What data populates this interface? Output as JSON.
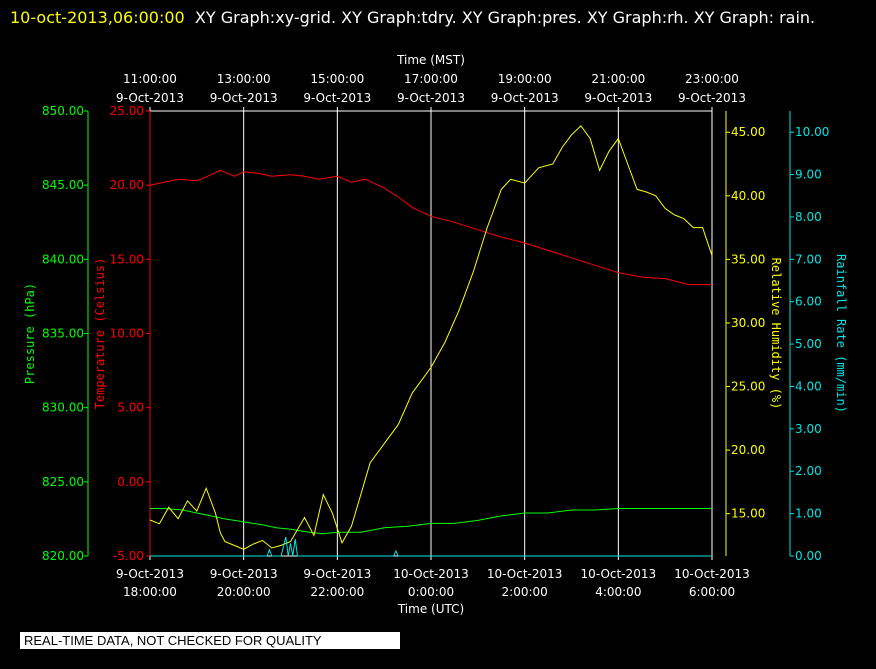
{
  "title": {
    "datetime": "10-oct-2013,06:00:00",
    "text": "XY Graph:xy-grid.  XY Graph:tdry.  XY Graph:pres.  XY Graph:rh.  XY Graph: rain."
  },
  "disclaimer": "REAL-TIME DATA, NOT CHECKED FOR QUALITY",
  "colors": {
    "temperature": "#ff0000",
    "pressure": "#00ff00",
    "humidity": "#ffff00",
    "rain": "#00e5e5",
    "grid": "#ffffff"
  },
  "chart_data": {
    "type": "line",
    "top_axis": {
      "title": "Time (MST)",
      "ticks": [
        [
          "11:00:00",
          "9-Oct-2013"
        ],
        [
          "13:00:00",
          "9-Oct-2013"
        ],
        [
          "15:00:00",
          "9-Oct-2013"
        ],
        [
          "17:00:00",
          "9-Oct-2013"
        ],
        [
          "19:00:00",
          "9-Oct-2013"
        ],
        [
          "21:00:00",
          "9-Oct-2013"
        ],
        [
          "23:00:00",
          "9-Oct-2013"
        ]
      ]
    },
    "bottom_axis": {
      "title": "Time (UTC)",
      "ticks": [
        [
          "9-Oct-2013",
          "18:00:00"
        ],
        [
          "9-Oct-2013",
          "20:00:00"
        ],
        [
          "9-Oct-2013",
          "22:00:00"
        ],
        [
          "10-Oct-2013",
          "0:00:00"
        ],
        [
          "10-Oct-2013",
          "2:00:00"
        ],
        [
          "10-Oct-2013",
          "4:00:00"
        ],
        [
          "10-Oct-2013",
          "6:00:00"
        ]
      ]
    },
    "x_range_hours": [
      0,
      12
    ],
    "axes": {
      "pressure": {
        "label": "Pressure (hPa)",
        "range": [
          820,
          850
        ],
        "ticks": [
          "820.00",
          "825.00",
          "830.00",
          "835.00",
          "840.00",
          "845.00",
          "850.00"
        ]
      },
      "temperature": {
        "label": "Temperature (Celsius)",
        "range": [
          -5,
          25
        ],
        "ticks": [
          "-5.00",
          "0.00",
          "5.00",
          "10.00",
          "15.00",
          "20.00",
          "25.00"
        ]
      },
      "humidity": {
        "label": "Relative Humidity (%)",
        "range": [
          11.67,
          46.67
        ],
        "ticks": [
          "15.00",
          "20.00",
          "25.00",
          "30.00",
          "35.00",
          "40.00",
          "45.00"
        ]
      },
      "rain": {
        "label": "Rainfall Rate (mm/min)",
        "range": [
          0,
          10.5
        ],
        "ticks": [
          "0.00",
          "1.00",
          "2.00",
          "3.00",
          "4.00",
          "5.00",
          "6.00",
          "7.00",
          "8.00",
          "9.00",
          "10.00"
        ]
      }
    },
    "series": [
      {
        "name": "tdry",
        "axis": "temperature",
        "x": [
          0,
          0.3,
          0.6,
          1,
          1.3,
          1.5,
          1.8,
          2,
          2.3,
          2.6,
          3,
          3.3,
          3.6,
          4,
          4.3,
          4.6,
          5,
          5.3,
          5.6,
          6,
          6.5,
          7,
          7.5,
          8,
          8.5,
          9,
          9.5,
          10,
          10.5,
          11,
          11.5,
          12
        ],
        "y": [
          20.0,
          20.2,
          20.4,
          20.3,
          20.7,
          21.0,
          20.6,
          20.9,
          20.8,
          20.6,
          20.7,
          20.6,
          20.4,
          20.6,
          20.2,
          20.4,
          19.8,
          19.2,
          18.5,
          17.9,
          17.5,
          17.0,
          16.5,
          16.1,
          15.6,
          15.1,
          14.6,
          14.1,
          13.8,
          13.7,
          13.3,
          13.3
        ]
      },
      {
        "name": "pres",
        "axis": "pressure",
        "x": [
          0,
          0.3,
          0.7,
          1,
          1.3,
          1.6,
          2,
          2.4,
          2.7,
          3,
          3.4,
          3.7,
          4,
          4.5,
          5,
          5.5,
          6,
          6.5,
          7,
          7.5,
          8,
          8.5,
          9,
          9.5,
          10,
          10.5,
          11,
          11.5,
          12
        ],
        "y": [
          823.2,
          823.2,
          823.1,
          822.9,
          822.7,
          822.5,
          822.3,
          822.1,
          821.9,
          821.8,
          821.6,
          821.5,
          821.6,
          821.6,
          821.9,
          822.0,
          822.2,
          822.2,
          822.4,
          822.7,
          822.9,
          822.9,
          823.1,
          823.1,
          823.2,
          823.2,
          823.2,
          823.2,
          823.2
        ]
      },
      {
        "name": "rh",
        "axis": "humidity",
        "x": [
          0,
          0.2,
          0.4,
          0.6,
          0.8,
          1,
          1.2,
          1.4,
          1.5,
          1.6,
          1.8,
          2,
          2.2,
          2.4,
          2.6,
          2.8,
          3,
          3.3,
          3.5,
          3.7,
          3.9,
          4.1,
          4.3,
          4.5,
          4.7,
          5,
          5.3,
          5.6,
          6,
          6.3,
          6.6,
          6.9,
          7.2,
          7.5,
          7.7,
          8,
          8.3,
          8.6,
          8.8,
          9,
          9.2,
          9.4,
          9.6,
          9.8,
          10,
          10.2,
          10.4,
          10.6,
          10.8,
          11,
          11.2,
          11.4,
          11.6,
          11.8,
          12
        ],
        "y": [
          14.5,
          14.2,
          15.5,
          14.6,
          16.0,
          15.2,
          17.0,
          15.0,
          13.5,
          12.8,
          12.5,
          12.2,
          12.6,
          12.9,
          12.3,
          12.5,
          12.8,
          14.7,
          13.3,
          16.5,
          15.0,
          12.7,
          14.0,
          16.5,
          19.0,
          20.5,
          22.0,
          24.5,
          26.5,
          28.5,
          31.0,
          34.0,
          37.5,
          40.5,
          41.3,
          41.0,
          42.2,
          42.5,
          43.8,
          44.8,
          45.5,
          44.5,
          42.0,
          43.5,
          44.5,
          42.5,
          40.5,
          40.3,
          40.0,
          39.0,
          38.5,
          38.2,
          37.5,
          37.5,
          35.3
        ]
      },
      {
        "name": "rain",
        "axis": "rain",
        "x": [
          0,
          2.5,
          2.55,
          2.6,
          2.8,
          2.9,
          2.95,
          3.0,
          3.05,
          3.1,
          3.15,
          3.2,
          5.2,
          5.25,
          5.3,
          12
        ],
        "y": [
          0,
          0,
          0.15,
          0,
          0,
          0.45,
          0,
          0.3,
          0,
          0.4,
          0,
          0,
          0,
          0.12,
          0,
          0
        ]
      }
    ]
  }
}
